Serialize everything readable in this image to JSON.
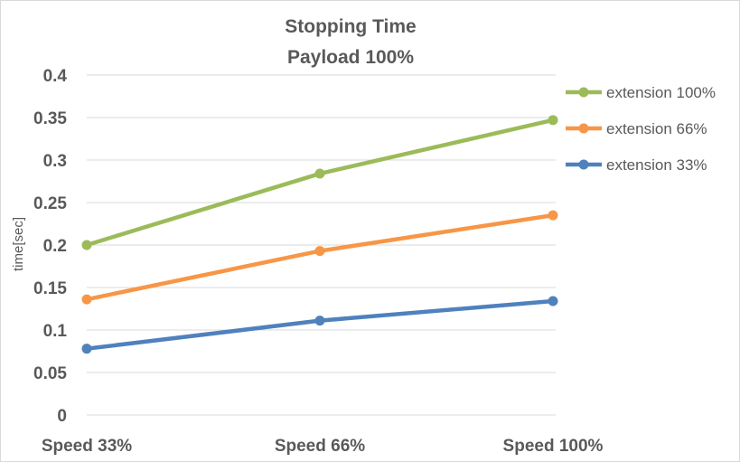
{
  "chart_data": {
    "type": "line",
    "title": "Stopping Time",
    "subtitle": "Payload 100%",
    "xlabel": "",
    "ylabel": "time[sec]",
    "categories": [
      "Speed 33%",
      "Speed 66%",
      "Speed 100%"
    ],
    "ylim": [
      0,
      0.4
    ],
    "yticks": [
      "0",
      "0.05",
      "0.1",
      "0.15",
      "0.2",
      "0.25",
      "0.3",
      "0.35",
      "0.4"
    ],
    "grid": true,
    "legend_position": "right",
    "series": [
      {
        "name": "extension 100%",
        "color": "#9bbb59",
        "values": [
          0.2,
          0.284,
          0.347
        ]
      },
      {
        "name": "extension 66%",
        "color": "#f79646",
        "values": [
          0.136,
          0.193,
          0.235
        ]
      },
      {
        "name": "extension 33%",
        "color": "#4f81bd",
        "values": [
          0.078,
          0.111,
          0.134
        ]
      }
    ]
  }
}
